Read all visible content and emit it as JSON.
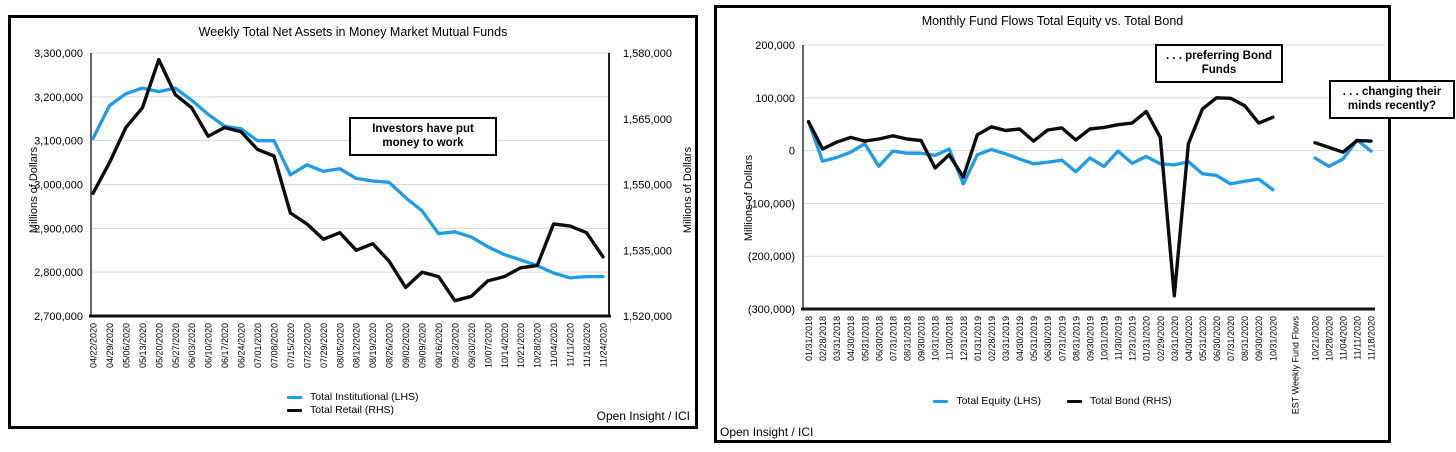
{
  "chart_data": [
    {
      "type": "line",
      "title": "Weekly Total Net Assets in Money Market Mutual Funds",
      "ylabel_left": "Millions of Dollars",
      "ylabel_right": "Millions of Dollars",
      "annotation": "Investors have put money to work",
      "attribution": "Open Insight / ICI",
      "grid": true,
      "legend_position": "bottom",
      "y_left": {
        "min": 2700000,
        "max": 3300000,
        "step": 100000
      },
      "y_right": {
        "min": 1520000,
        "max": 1580000,
        "step": 15000
      },
      "categories": [
        "04/22/2020",
        "04/29/2020",
        "05/06/2020",
        "05/13/2020",
        "05/20/2020",
        "05/27/2020",
        "06/03/2020",
        "06/10/2020",
        "06/17/2020",
        "06/24/2020",
        "07/01/2020",
        "07/08/2020",
        "07/15/2020",
        "07/22/2020",
        "07/29/2020",
        "08/05/2020",
        "08/12/2020",
        "08/19/2020",
        "08/26/2020",
        "09/02/2020",
        "09/09/2020",
        "09/16/2020",
        "09/23/2020",
        "09/30/2020",
        "10/07/2020",
        "10/14/2020",
        "10/21/2020",
        "10/28/2020",
        "11/04/2020",
        "11/11/2020",
        "11/18/2020",
        "11/24/2020"
      ],
      "series": [
        {
          "name": "Total Institutional (LHS)",
          "axis": "left",
          "color": "#1e9be9",
          "values": [
            3105000,
            3180000,
            3207000,
            3220000,
            3212000,
            3220000,
            3192000,
            3160000,
            3133000,
            3127000,
            3100000,
            3100000,
            3022000,
            3045000,
            3030000,
            3036000,
            3014000,
            3008000,
            3005000,
            2970000,
            2940000,
            2888000,
            2892000,
            2880000,
            2858000,
            2840000,
            2828000,
            2815000,
            2798000,
            2787000,
            2790000,
            2790000
          ]
        },
        {
          "name": "Total Retail (RHS)",
          "axis": "right",
          "color": "#0d0d0d",
          "values": [
            1548000,
            1555000,
            1563000,
            1567500,
            1578500,
            1570500,
            1567500,
            1561000,
            1563000,
            1562000,
            1558000,
            1556500,
            1543500,
            1541000,
            1537500,
            1539000,
            1535000,
            1536500,
            1532500,
            1526500,
            1530000,
            1529000,
            1523500,
            1524500,
            1528000,
            1529000,
            1531000,
            1531500,
            1541000,
            1540500,
            1539000,
            1533500
          ]
        }
      ]
    },
    {
      "type": "line",
      "title": "Monthly Fund Flows Total Equity vs. Total Bond",
      "ylabel": "Millions of Dollars",
      "annotations": [
        ". . . preferring Bond Funds",
        ". . . changing their minds recently?"
      ],
      "attribution": "Open Insight / ICI",
      "grid": true,
      "legend_position": "bottom",
      "y": {
        "min": -300000,
        "max": 200000,
        "step": 100000
      },
      "gap_label": "EST Weekly Fund Flows",
      "categories_monthly": [
        "01/31/2018",
        "02/28/2018",
        "03/31/2018",
        "04/30/2018",
        "05/31/2018",
        "06/30/2018",
        "07/31/2018",
        "08/31/2018",
        "09/30/2018",
        "10/31/2018",
        "11/30/2018",
        "12/31/2018",
        "01/31/2019",
        "02/28/2019",
        "03/31/2019",
        "04/30/2019",
        "05/31/2019",
        "06/30/2019",
        "07/31/2019",
        "08/31/2019",
        "09/30/2019",
        "10/31/2019",
        "11/30/2019",
        "12/31/2019",
        "01/31/2020",
        "02/29/2020",
        "03/31/2020",
        "04/30/2020",
        "05/31/2020",
        "06/30/2020",
        "07/31/2020",
        "08/31/2020",
        "09/30/2020",
        "10/31/2020"
      ],
      "categories_weekly": [
        "10/21/2020",
        "10/28/2020",
        "11/04/2020",
        "11/11/2020",
        "11/18/2020"
      ],
      "series": [
        {
          "name": "Total Equity (LHS)",
          "axis": "left",
          "color": "#1e9be9",
          "monthly": [
            55000,
            -20000,
            -13000,
            -3000,
            13000,
            -30000,
            -1000,
            -5000,
            -5000,
            -9000,
            3000,
            -63000,
            -8000,
            2000,
            -6000,
            -16000,
            -25000,
            -22000,
            -18000,
            -40000,
            -14000,
            -30000,
            -1000,
            -24000,
            -11000,
            -25000,
            -27000,
            -21000,
            -44000,
            -47000,
            -63000,
            -58000,
            -54000,
            -74000
          ],
          "weekly": [
            -14000,
            -30000,
            -16000,
            20000,
            -1000
          ]
        },
        {
          "name": "Total Bond (RHS)",
          "axis": "right",
          "color": "#0d0d0d",
          "monthly": [
            55000,
            3000,
            16000,
            25000,
            18000,
            22000,
            28000,
            22000,
            19000,
            -33000,
            -8000,
            -50000,
            30000,
            45000,
            38000,
            41000,
            18000,
            39000,
            43000,
            20000,
            41000,
            44000,
            49000,
            52000,
            74000,
            25000,
            -275000,
            13000,
            79000,
            100000,
            99000,
            85000,
            52000,
            63000
          ],
          "weekly": [
            15000,
            6000,
            -3000,
            19000,
            18000
          ]
        }
      ]
    }
  ]
}
